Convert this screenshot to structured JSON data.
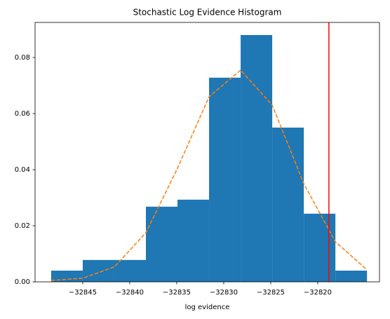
{
  "chart_data": {
    "type": "histogram",
    "title": "Stochastic Log Evidence Histogram",
    "xlabel": "log evidence",
    "bins": [
      -32848.36,
      -32845.0,
      -32841.64,
      -32838.28,
      -32834.92,
      -32831.56,
      -32828.2,
      -32824.84,
      -32821.48,
      -32818.12,
      -32814.76
    ],
    "values": [
      0.004,
      0.0078,
      0.0078,
      0.0268,
      0.0293,
      0.0728,
      0.088,
      0.055,
      0.0243,
      0.004
    ],
    "color": "#1f77b4",
    "line": {
      "x": [
        -32848.36,
        -32845.0,
        -32841.64,
        -32838.28,
        -32834.92,
        -32831.56,
        -32828.2,
        -32824.84,
        -32821.48,
        -32818.12,
        -32814.76
      ],
      "values": [
        0.0005,
        0.0013,
        0.0053,
        0.0175,
        0.0405,
        0.066,
        0.0755,
        0.063,
        0.035,
        0.0143,
        0.0043
      ],
      "color": "#ff7f0e",
      "style": "dashed"
    },
    "vline": {
      "x": -32818.81,
      "color": "#ff0000"
    },
    "xlim": [
      -32850.07,
      -32813.43
    ],
    "ylim": [
      0,
      0.0925
    ],
    "xticks": [
      {
        "value": -32845,
        "label": "−32845"
      },
      {
        "value": -32840,
        "label": "−32840"
      },
      {
        "value": -32835,
        "label": "−32835"
      },
      {
        "value": -32830,
        "label": "−32830"
      },
      {
        "value": -32825,
        "label": "−32825"
      },
      {
        "value": -32820,
        "label": "−32820"
      }
    ],
    "yticks": [
      {
        "value": 0,
        "label": "0.00"
      },
      {
        "value": 0.02,
        "label": "0.02"
      },
      {
        "value": 0.04,
        "label": "0.04"
      },
      {
        "value": 0.06,
        "label": "0.06"
      },
      {
        "value": 0.08,
        "label": "0.08"
      }
    ]
  }
}
